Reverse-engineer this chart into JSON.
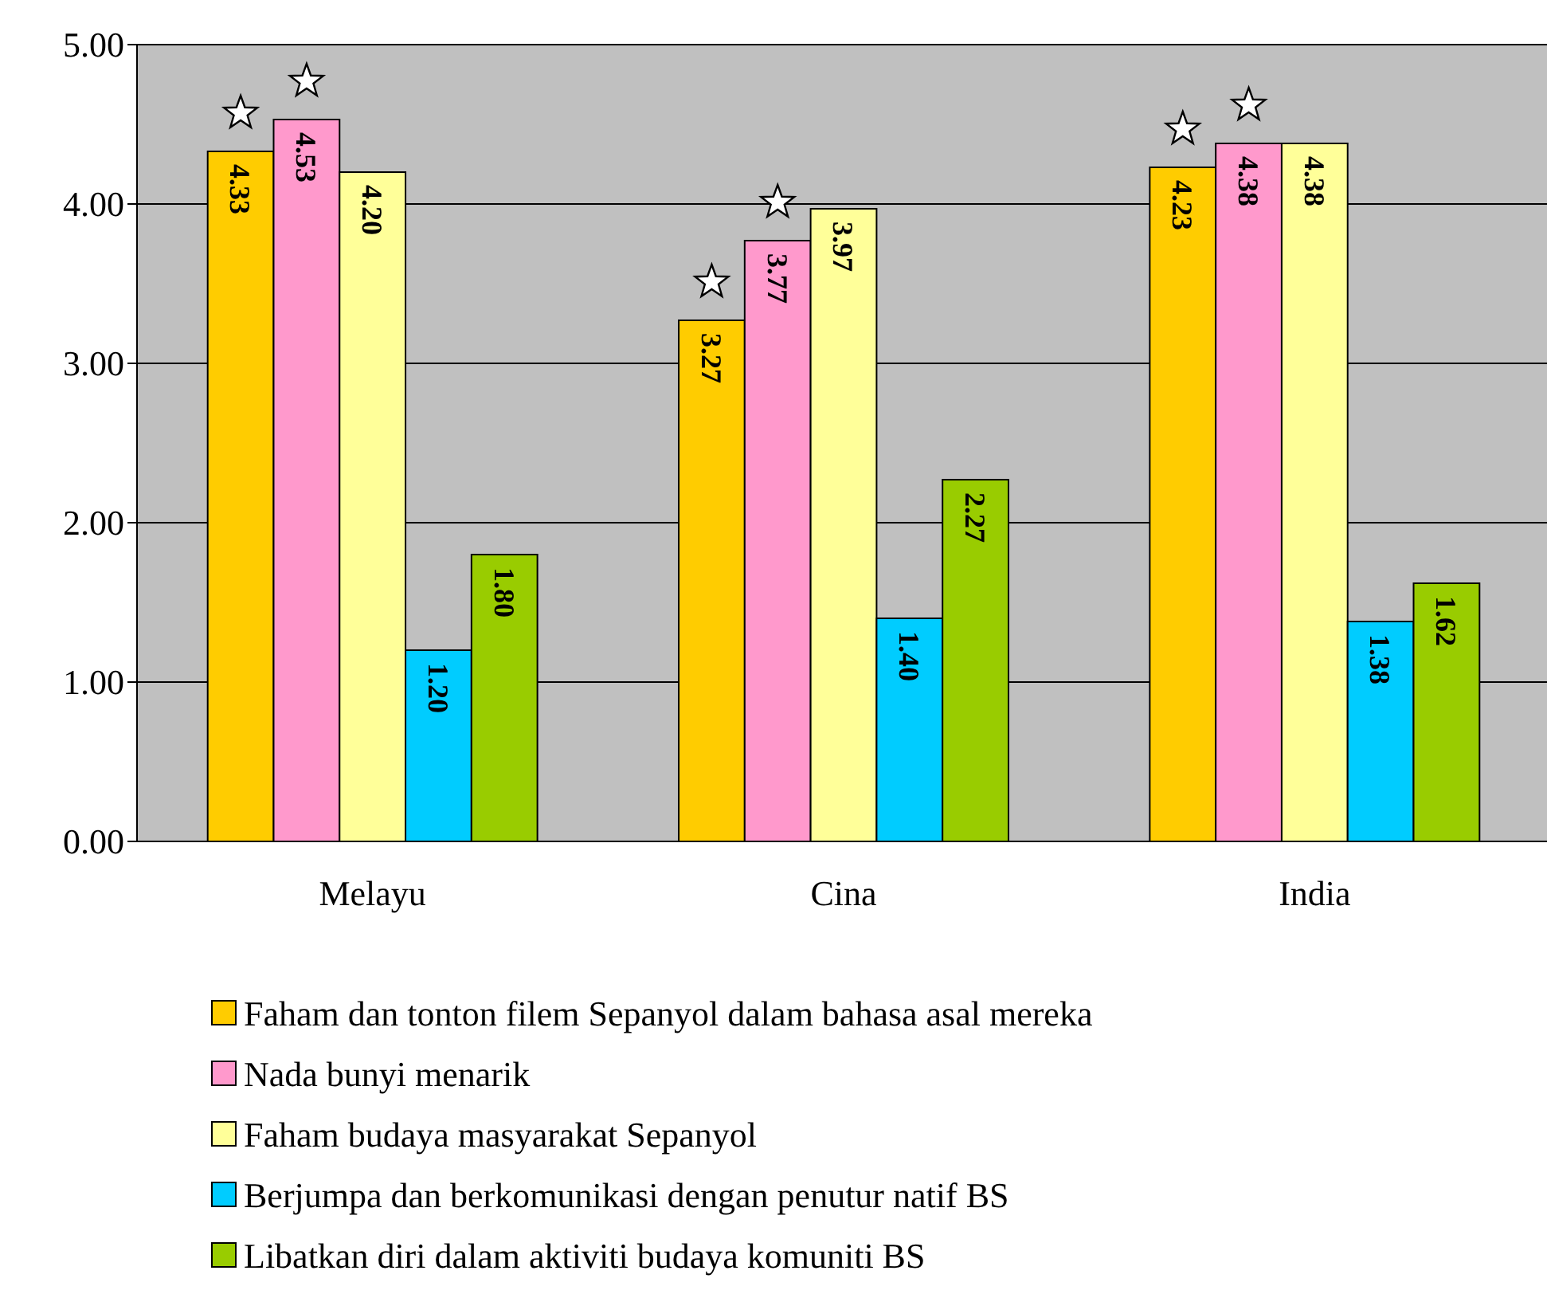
{
  "chart_data": {
    "type": "bar",
    "categories": [
      "Melayu",
      "Cina",
      "India"
    ],
    "series": [
      {
        "name": "Faham dan tonton filem Sepanyol dalam bahasa asal mereka",
        "color": "#ffcc00",
        "values": [
          4.33,
          3.27,
          4.23
        ],
        "value_labels": [
          "4.33",
          "3.27",
          "4.23"
        ]
      },
      {
        "name": "Nada bunyi menarik",
        "color": "#ff99cc",
        "values": [
          4.53,
          3.77,
          4.38
        ],
        "value_labels": [
          "4.53",
          "3.77",
          "4.38"
        ]
      },
      {
        "name": "Faham budaya masyarakat Sepanyol",
        "color": "#ffff99",
        "values": [
          4.2,
          3.97,
          4.38
        ],
        "value_labels": [
          "4.20",
          "3.97",
          "4.38"
        ]
      },
      {
        "name": "Berjumpa dan berkomunikasi dengan penutur natif BS",
        "color": "#00ccff",
        "values": [
          1.2,
          1.4,
          1.38
        ],
        "value_labels": [
          "1.20",
          "1.40",
          "1.38"
        ]
      },
      {
        "name": "Libatkan diri dalam aktiviti budaya komuniti BS",
        "color": "#99cc00",
        "values": [
          1.8,
          2.27,
          1.62
        ],
        "value_labels": [
          "1.80",
          "2.27",
          "1.62"
        ]
      }
    ],
    "ylim": [
      0,
      5
    ],
    "yticks": [
      {
        "value": 0,
        "label": "0.00"
      },
      {
        "value": 1,
        "label": "1.00"
      },
      {
        "value": 2,
        "label": "2.00"
      },
      {
        "value": 3,
        "label": "3.00"
      },
      {
        "value": 4,
        "label": "4.00"
      },
      {
        "value": 5,
        "label": "5.00"
      }
    ],
    "grid": "y",
    "legend": "bottom"
  }
}
